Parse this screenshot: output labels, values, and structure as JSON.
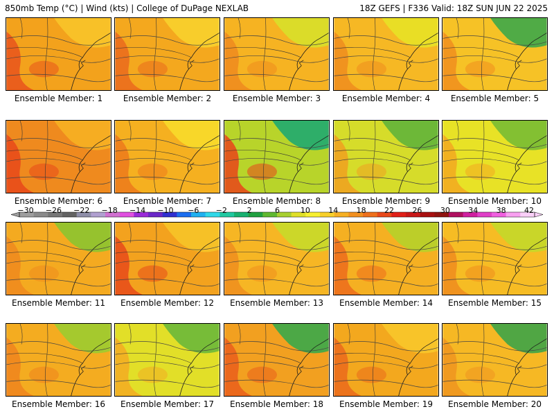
{
  "header": {
    "left": "850mb Temp (°C) | Wind (kts) | College of DuPage NEXLAB",
    "right": "18Z GEFS | F336 Valid: 18Z SUN JUN 22 2025"
  },
  "panels": [
    {
      "label": "Ensemble Member: 1",
      "base": "#f3a21c",
      "hot": "#e8541c",
      "cool": "#f8c42a"
    },
    {
      "label": "Ensemble Member: 2",
      "base": "#f4a81e",
      "hot": "#ea6a1d",
      "cool": "#f8d02c"
    },
    {
      "label": "Ensemble Member: 3",
      "base": "#f6b322",
      "hot": "#ee8a1e",
      "cool": "#d8e02a"
    },
    {
      "label": "Ensemble Member: 4",
      "base": "#f6b824",
      "hot": "#ef8c1e",
      "cool": "#e8e226"
    },
    {
      "label": "Ensemble Member: 5",
      "base": "#f6c226",
      "hot": "#f08e1e",
      "cool": "#3ea84a"
    },
    {
      "label": "Ensemble Member: 6",
      "base": "#ef8a1e",
      "hot": "#e8481a",
      "cool": "#f6b022"
    },
    {
      "label": "Ensemble Member: 7",
      "base": "#f5b020",
      "hot": "#ec7a1c",
      "cool": "#f8dc2a"
    },
    {
      "label": "Ensemble Member: 8",
      "base": "#b8d42a",
      "hot": "#e8441a",
      "cool": "#1faa70"
    },
    {
      "label": "Ensemble Member: 9",
      "base": "#d6dc2a",
      "hot": "#f0a020",
      "cool": "#62b43a"
    },
    {
      "label": "Ensemble Member: 10",
      "base": "#e8e226",
      "hot": "#f2a821",
      "cool": "#78bc34"
    },
    {
      "label": "Ensemble Member: 11",
      "base": "#f4aa20",
      "hot": "#ee8a1e",
      "cool": "#8cc430"
    },
    {
      "label": "Ensemble Member: 12",
      "base": "#f3a21e",
      "hot": "#e64a1a",
      "cool": "#f6c428"
    },
    {
      "label": "Ensemble Member: 13",
      "base": "#f6b624",
      "hot": "#ef8e1e",
      "cool": "#c8da2a"
    },
    {
      "label": "Ensemble Member: 14",
      "base": "#f5b022",
      "hot": "#ec6c1c",
      "cool": "#b6d22a"
    },
    {
      "label": "Ensemble Member: 15",
      "base": "#f6bc24",
      "hot": "#ef8c1e",
      "cool": "#c4d82a"
    },
    {
      "label": "Ensemble Member: 16",
      "base": "#f4ac20",
      "hot": "#ee841e",
      "cool": "#9ccc30"
    },
    {
      "label": "Ensemble Member: 17",
      "base": "#e2df28",
      "hot": "#f3ac22",
      "cool": "#6cb83a"
    },
    {
      "label": "Ensemble Member: 18",
      "base": "#f2a020",
      "hot": "#ea5e1c",
      "cool": "#3aa84a"
    },
    {
      "label": "Ensemble Member: 19",
      "base": "#f3a81e",
      "hot": "#ea6a1c",
      "cool": "#f8c62a"
    },
    {
      "label": "Ensemble Member: 20",
      "base": "#f6b824",
      "hot": "#ef9420",
      "cool": "#3ea448"
    }
  ],
  "colorbar": {
    "labels": [
      "−30",
      "−26",
      "−22",
      "−18",
      "−14",
      "−10",
      "−6",
      "−2",
      "2",
      "6",
      "10",
      "14",
      "18",
      "22",
      "26",
      "30",
      "34",
      "38",
      "42"
    ],
    "colors": [
      "#9e9e9e",
      "#8a8a8a",
      "#767676",
      "#626262",
      "#8e8ea8",
      "#b0a0d0",
      "#d070d0",
      "#e050e0",
      "#9a2ad8",
      "#6a28c8",
      "#3030d0",
      "#1c6ef0",
      "#20b0f0",
      "#30d8e8",
      "#20c8a0",
      "#18b070",
      "#20a040",
      "#60b830",
      "#a8d030",
      "#e0e028",
      "#f8f030",
      "#f8d02a",
      "#f6b024",
      "#f29020",
      "#ee701c",
      "#e8481a",
      "#e02018",
      "#c81818",
      "#a81010",
      "#901410",
      "#b01060",
      "#d020a0",
      "#e040c8",
      "#f060e0",
      "#f8a0f0",
      "#fad0f8"
    ]
  }
}
